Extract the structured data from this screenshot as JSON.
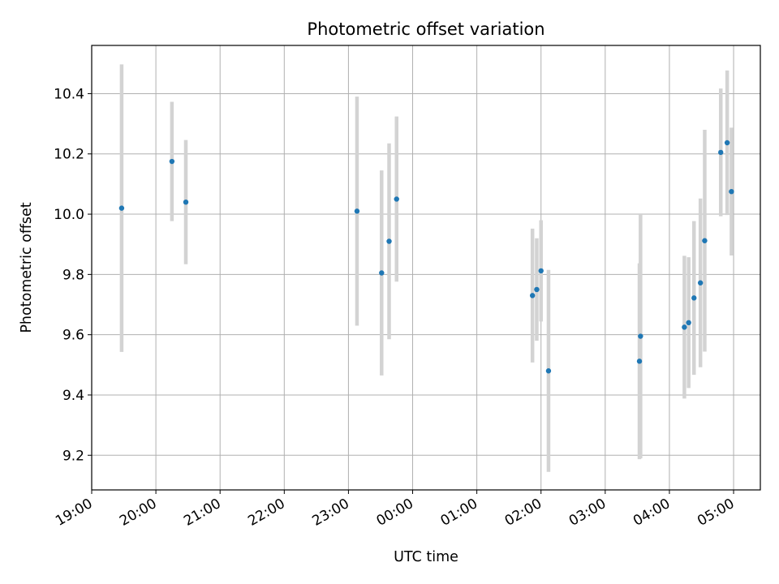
{
  "chart_data": {
    "type": "scatter",
    "title": "Photometric offset variation",
    "xlabel": "UTC time",
    "ylabel": "Photometric offset",
    "xlim": [
      "2000-01-01T19:00",
      "2000-01-02T05:25"
    ],
    "ylim": [
      9.085,
      10.56
    ],
    "x_ticks": [
      "19:00",
      "20:00",
      "21:00",
      "22:00",
      "23:00",
      "00:00",
      "01:00",
      "02:00",
      "03:00",
      "04:00",
      "05:00"
    ],
    "y_ticks": [
      9.2,
      9.4,
      9.6,
      9.8,
      10.0,
      10.2,
      10.4
    ],
    "grid": true,
    "point_color": "#1f77b4",
    "errorbar_color": "#d3d3d3",
    "points": [
      {
        "t": "2000-01-01T19:28",
        "y": 10.02,
        "err": 0.477
      },
      {
        "t": "2000-01-01T20:15",
        "y": 10.175,
        "err": 0.198
      },
      {
        "t": "2000-01-01T20:28",
        "y": 10.04,
        "err": 0.206
      },
      {
        "t": "2000-01-01T23:08",
        "y": 10.01,
        "err": 0.38
      },
      {
        "t": "2000-01-01T23:31",
        "y": 9.805,
        "err": 0.34
      },
      {
        "t": "2000-01-01T23:38",
        "y": 9.91,
        "err": 0.325
      },
      {
        "t": "2000-01-01T23:45",
        "y": 10.05,
        "err": 0.274
      },
      {
        "t": "2000-01-02T01:52",
        "y": 9.73,
        "err": 0.222
      },
      {
        "t": "2000-01-02T01:56",
        "y": 9.75,
        "err": 0.17
      },
      {
        "t": "2000-01-02T02:00",
        "y": 9.812,
        "err": 0.168
      },
      {
        "t": "2000-01-02T02:07",
        "y": 9.48,
        "err": 0.335
      },
      {
        "t": "2000-01-02T03:32",
        "y": 9.512,
        "err": 0.325
      },
      {
        "t": "2000-01-02T03:33",
        "y": 9.595,
        "err": 0.405
      },
      {
        "t": "2000-01-02T04:14",
        "y": 9.625,
        "err": 0.237
      },
      {
        "t": "2000-01-02T04:18",
        "y": 9.64,
        "err": 0.217
      },
      {
        "t": "2000-01-02T04:23",
        "y": 9.722,
        "err": 0.255
      },
      {
        "t": "2000-01-02T04:29",
        "y": 9.772,
        "err": 0.28
      },
      {
        "t": "2000-01-02T04:33",
        "y": 9.912,
        "err": 0.368
      },
      {
        "t": "2000-01-02T04:48",
        "y": 10.205,
        "err": 0.212
      },
      {
        "t": "2000-01-02T04:54",
        "y": 10.237,
        "err": 0.24
      },
      {
        "t": "2000-01-02T04:58",
        "y": 10.075,
        "err": 0.212
      }
    ]
  }
}
